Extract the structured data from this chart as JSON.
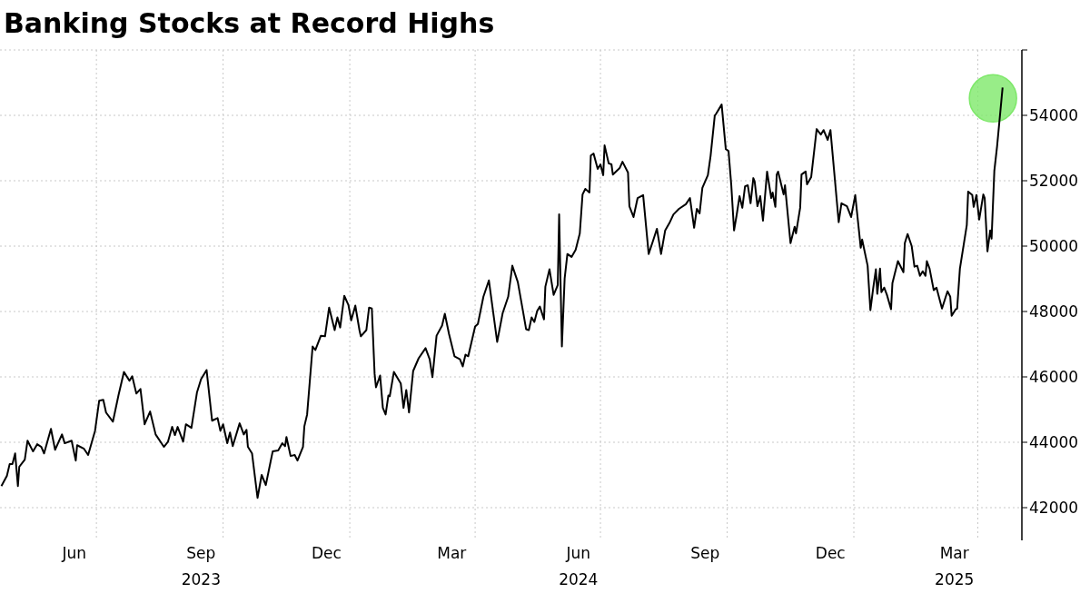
{
  "chart_data": {
    "type": "line",
    "title": "Banking Stocks at Record Highs",
    "xlim": [
      "2023-04-22",
      "2025-05-03"
    ],
    "xticks": [
      {
        "value": "2023-06-15",
        "label": "Jun"
      },
      {
        "value": "2023-07-01",
        "label": null
      },
      {
        "value": "2023-09-15",
        "label": "Sep\n2023"
      },
      {
        "value": "2023-10-01",
        "label": null
      },
      {
        "value": "2023-12-15",
        "label": "Dec"
      },
      {
        "value": "2024-01-01",
        "label": null
      },
      {
        "value": "2024-03-15",
        "label": "Mar"
      },
      {
        "value": "2024-04-01",
        "label": null
      },
      {
        "value": "2024-06-15",
        "label": "Jun\n2024"
      },
      {
        "value": "2024-07-01",
        "label": null
      },
      {
        "value": "2024-09-15",
        "label": "Sep"
      },
      {
        "value": "2024-10-01",
        "label": null
      },
      {
        "value": "2024-12-15",
        "label": "Dec"
      },
      {
        "value": "2025-01-01",
        "label": null
      },
      {
        "value": "2025-03-15",
        "label": "Mar\n2025"
      },
      {
        "value": "2025-04-01",
        "label": null
      }
    ],
    "ylim": [
      41000,
      56000
    ],
    "yticks": [
      42000,
      44000,
      46000,
      48000,
      50000,
      52000,
      54000,
      {
        "value": 56000,
        "label": null
      }
    ],
    "grid": true,
    "series": [
      {
        "color": "#000000",
        "x": [
          "2023-04-23",
          "2023-04-27",
          "2023-04-29",
          "2023-05-01",
          "2023-05-03",
          "2023-05-05",
          "2023-05-06",
          "2023-05-10",
          "2023-05-12",
          "2023-05-16",
          "2023-05-19",
          "2023-05-22",
          "2023-05-24",
          "2023-05-29",
          "2023-06-01",
          "2023-06-06",
          "2023-06-08",
          "2023-06-13",
          "2023-06-16",
          "2023-06-17",
          "2023-06-22",
          "2023-06-25",
          "2023-06-30",
          "2023-07-03",
          "2023-07-06",
          "2023-07-08",
          "2023-07-13",
          "2023-07-17",
          "2023-07-21",
          "2023-07-25",
          "2023-07-27",
          "2023-07-30",
          "2023-08-02",
          "2023-08-05",
          "2023-08-09",
          "2023-08-13",
          "2023-08-19",
          "2023-08-22",
          "2023-08-25",
          "2023-08-27",
          "2023-08-29",
          "2023-09-02",
          "2023-09-04",
          "2023-09-08",
          "2023-09-12",
          "2023-09-15",
          "2023-09-19",
          "2023-09-23",
          "2023-09-27",
          "2023-09-29",
          "2023-10-01",
          "2023-10-04",
          "2023-10-06",
          "2023-10-08",
          "2023-10-13",
          "2023-10-16",
          "2023-10-18",
          "2023-10-19",
          "2023-10-22",
          "2023-10-26",
          "2023-10-29",
          "2023-11-01",
          "2023-11-06",
          "2023-11-10",
          "2023-11-13",
          "2023-11-15",
          "2023-11-16",
          "2023-11-19",
          "2023-11-22",
          "2023-11-24",
          "2023-11-28",
          "2023-11-29",
          "2023-12-01",
          "2023-12-05",
          "2023-12-07",
          "2023-12-11",
          "2023-12-14",
          "2023-12-17",
          "2023-12-21",
          "2023-12-23",
          "2023-12-25",
          "2023-12-28",
          "2023-12-31",
          "2024-01-02",
          "2024-01-05",
          "2024-01-08",
          "2024-01-09",
          "2024-01-13",
          "2024-01-15",
          "2024-01-17",
          "2024-01-19",
          "2024-01-20",
          "2024-01-23",
          "2024-01-25",
          "2024-01-27",
          "2024-01-29",
          "2024-01-30",
          "2024-02-02",
          "2024-02-07",
          "2024-02-09",
          "2024-02-11",
          "2024-02-13",
          "2024-02-16",
          "2024-02-20",
          "2024-02-25",
          "2024-02-28",
          "2024-03-01",
          "2024-03-04",
          "2024-03-08",
          "2024-03-10",
          "2024-03-13",
          "2024-03-17",
          "2024-03-21",
          "2024-03-23",
          "2024-03-25",
          "2024-03-27",
          "2024-04-01",
          "2024-04-03",
          "2024-04-07",
          "2024-04-11",
          "2024-04-17",
          "2024-04-21",
          "2024-04-25",
          "2024-04-28",
          "2024-05-02",
          "2024-05-06",
          "2024-05-08",
          "2024-05-10",
          "2024-05-12",
          "2024-05-14",
          "2024-05-16",
          "2024-05-18",
          "2024-05-21",
          "2024-05-22",
          "2024-05-25",
          "2024-05-28",
          "2024-05-31",
          "2024-06-01",
          "2024-06-03",
          "2024-06-05",
          "2024-06-07",
          "2024-06-10",
          "2024-06-13",
          "2024-06-16",
          "2024-06-18",
          "2024-06-20",
          "2024-06-23",
          "2024-06-24",
          "2024-06-26",
          "2024-06-29",
          "2024-07-01",
          "2024-07-03",
          "2024-07-04",
          "2024-07-07",
          "2024-07-09",
          "2024-07-10",
          "2024-07-15",
          "2024-07-17",
          "2024-07-21",
          "2024-07-22",
          "2024-07-25",
          "2024-07-28",
          "2024-08-01",
          "2024-08-05",
          "2024-08-08",
          "2024-08-11",
          "2024-08-14",
          "2024-08-17",
          "2024-08-20",
          "2024-08-23",
          "2024-08-27",
          "2024-09-01",
          "2024-09-04",
          "2024-09-07",
          "2024-09-09",
          "2024-09-11",
          "2024-09-13",
          "2024-09-17",
          "2024-09-19",
          "2024-09-22",
          "2024-09-23",
          "2024-09-27",
          "2024-09-30",
          "2024-10-02",
          "2024-10-04",
          "2024-10-06",
          "2024-10-08",
          "2024-10-10",
          "2024-10-12",
          "2024-10-14",
          "2024-10-16",
          "2024-10-18",
          "2024-10-20",
          "2024-10-21",
          "2024-10-23",
          "2024-10-25",
          "2024-10-27",
          "2024-10-30",
          "2024-11-02",
          "2024-11-03",
          "2024-11-05",
          "2024-11-06",
          "2024-11-07",
          "2024-11-11",
          "2024-11-12",
          "2024-11-16",
          "2024-11-19",
          "2024-11-20",
          "2024-11-23",
          "2024-11-24",
          "2024-11-27",
          "2024-11-28",
          "2024-12-01",
          "2024-12-05",
          "2024-12-08",
          "2024-12-10",
          "2024-12-13",
          "2024-12-15",
          "2024-12-21",
          "2024-12-23",
          "2024-12-27",
          "2024-12-30",
          "2025-01-02",
          "2025-01-06",
          "2025-01-07",
          "2025-01-11",
          "2025-01-13",
          "2025-01-15",
          "2025-01-17",
          "2025-01-18",
          "2025-01-20",
          "2025-01-21",
          "2025-01-23",
          "2025-01-25",
          "2025-01-28",
          "2025-01-29",
          "2025-02-02",
          "2025-02-06",
          "2025-02-07",
          "2025-02-09",
          "2025-02-12",
          "2025-02-14",
          "2025-02-16",
          "2025-02-18",
          "2025-02-20",
          "2025-02-22",
          "2025-02-23",
          "2025-02-25",
          "2025-02-28",
          "2025-03-02",
          "2025-03-06",
          "2025-03-10",
          "2025-03-12",
          "2025-03-13",
          "2025-03-16",
          "2025-03-17",
          "2025-03-19",
          "2025-03-24",
          "2025-03-25",
          "2025-03-28",
          "2025-03-29",
          "2025-03-31",
          "2025-04-02",
          "2025-04-05",
          "2025-04-06",
          "2025-04-08",
          "2025-04-10",
          "2025-04-11",
          "2025-04-13",
          "2025-04-15",
          "2025-04-19"
        ],
        "values": [
          42660,
          42970,
          43330,
          43330,
          43660,
          42660,
          43250,
          43470,
          44050,
          43720,
          43940,
          43860,
          43660,
          44410,
          43770,
          44240,
          43970,
          44050,
          43440,
          43910,
          43800,
          43610,
          44350,
          45270,
          45300,
          44910,
          44630,
          45430,
          46150,
          45880,
          46020,
          45490,
          45630,
          44550,
          44940,
          44240,
          43860,
          44020,
          44470,
          44220,
          44470,
          44020,
          44550,
          44440,
          45520,
          45930,
          46210,
          44660,
          44740,
          44350,
          44550,
          43970,
          44300,
          43880,
          44580,
          44240,
          44380,
          43860,
          43660,
          42300,
          43000,
          42690,
          43720,
          43750,
          43970,
          43880,
          44160,
          43580,
          43610,
          43440,
          43860,
          44490,
          44850,
          46930,
          46820,
          47260,
          47240,
          48120,
          47430,
          47820,
          47510,
          48480,
          48200,
          47730,
          48180,
          47430,
          47240,
          47430,
          48120,
          48090,
          46100,
          45680,
          46040,
          45050,
          44850,
          45430,
          45410,
          46150,
          45800,
          45050,
          45600,
          44910,
          46180,
          46570,
          46880,
          46540,
          45990,
          47260,
          47570,
          47930,
          47320,
          46630,
          46540,
          46320,
          46680,
          46630,
          47540,
          47620,
          48450,
          48950,
          47070,
          47950,
          48450,
          49400,
          48900,
          47950,
          47460,
          47430,
          47820,
          47680,
          48010,
          48150,
          47760,
          48760,
          49290,
          48510,
          48810,
          50970,
          46930,
          49010,
          49760,
          49670,
          49890,
          50390,
          51580,
          51750,
          51640,
          52770,
          52830,
          52360,
          52500,
          52170,
          53080,
          52530,
          52500,
          52190,
          52390,
          52580,
          52250,
          51220,
          50890,
          51470,
          51560,
          49760,
          50140,
          50530,
          49760,
          50480,
          50700,
          50970,
          51140,
          51280,
          51470,
          50560,
          51140,
          51000,
          51780,
          52170,
          52770,
          53990,
          54050,
          54330,
          52970,
          52910,
          51860,
          50480,
          50980,
          51530,
          51170,
          51830,
          51860,
          51310,
          52080,
          51970,
          51220,
          51530,
          50780,
          52280,
          51470,
          51640,
          51200,
          52190,
          52280,
          51580,
          51860,
          50090,
          50590,
          50390,
          51170,
          52190,
          52280,
          51890,
          52110,
          53580,
          53410,
          53550,
          53250,
          53550,
          50730,
          51310,
          51220,
          50890,
          51560,
          49950,
          50200,
          49400,
          48040,
          48700,
          49290,
          48540,
          49310,
          48590,
          48730,
          48510,
          48070,
          48870,
          49540,
          49200,
          50090,
          50370,
          50000,
          49370,
          49400,
          49090,
          49230,
          49090,
          49540,
          49310,
          48650,
          48730,
          48090,
          48620,
          48450,
          47870,
          48070,
          48090,
          49310,
          50640,
          51670,
          51560,
          51200,
          51560,
          50810,
          51580,
          51470,
          49840,
          50480,
          50230,
          52300,
          53050,
          54850
        ]
      },
      {
        "type": "scatter",
        "color": "#7ee86a",
        "marker": "circle",
        "x": [
          "2025-04-12"
        ],
        "values": [
          54520
        ]
      }
    ]
  }
}
